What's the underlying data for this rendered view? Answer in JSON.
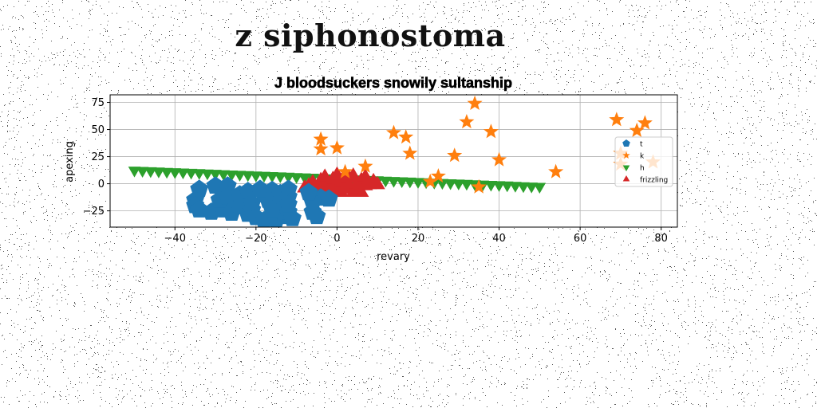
{
  "page": {
    "title": "z siphonostoma"
  },
  "colors": {
    "t": "#1f77b4",
    "k": "#ff7f0e",
    "h": "#2ca02c",
    "frizzling": "#d62728"
  },
  "chart_data": {
    "type": "scatter",
    "title": "J bloodsuckers snowily sultanship",
    "xlabel": "revary",
    "ylabel": "apexing",
    "xlim": [
      -56,
      84
    ],
    "ylim": [
      -40,
      82
    ],
    "xticks": [
      -40,
      -20,
      0,
      20,
      40,
      60,
      80
    ],
    "yticks": [
      -25,
      0,
      25,
      50,
      75
    ],
    "grid": true,
    "legend_position": "center-right",
    "series": [
      {
        "name": "t",
        "marker": "pentagon",
        "points": [
          [
            -34,
            -5
          ],
          [
            -35,
            -15
          ],
          [
            -35,
            -20
          ],
          [
            -34,
            -24
          ],
          [
            -31,
            -26
          ],
          [
            -28,
            -24
          ],
          [
            -29,
            -15
          ],
          [
            -30,
            -2
          ],
          [
            -27,
            -2
          ],
          [
            -27,
            -12
          ],
          [
            -25,
            -17
          ],
          [
            -26,
            -27
          ],
          [
            -24,
            -21
          ],
          [
            -22,
            -28
          ],
          [
            -24,
            -10
          ],
          [
            -22,
            -7
          ],
          [
            -21,
            -18
          ],
          [
            -21,
            -24
          ],
          [
            -20,
            -31
          ],
          [
            -18,
            -34
          ],
          [
            -15,
            -33
          ],
          [
            -13,
            -30
          ],
          [
            -15,
            -21
          ],
          [
            -17,
            -15
          ],
          [
            -18,
            -10
          ],
          [
            -16,
            -6
          ],
          [
            -19,
            -5
          ],
          [
            -14,
            -9
          ],
          [
            -12,
            -5
          ],
          [
            -12,
            -12
          ],
          [
            -16,
            -24
          ],
          [
            -12,
            -26
          ],
          [
            -11,
            -32
          ],
          [
            -6,
            -26
          ],
          [
            -5,
            -30
          ],
          [
            -4,
            -13
          ],
          [
            -6,
            -17
          ],
          [
            -2,
            -14
          ],
          [
            -12,
            -19
          ],
          [
            -7,
            -8
          ]
        ]
      },
      {
        "name": "k",
        "marker": "star",
        "points": [
          [
            -4,
            41
          ],
          [
            -4,
            32
          ],
          [
            0,
            33
          ],
          [
            2,
            11
          ],
          [
            7,
            16
          ],
          [
            14,
            47
          ],
          [
            17,
            43
          ],
          [
            18,
            28
          ],
          [
            23,
            2
          ],
          [
            25,
            7
          ],
          [
            29,
            26
          ],
          [
            32,
            57
          ],
          [
            34,
            74
          ],
          [
            35,
            -3
          ],
          [
            38,
            48
          ],
          [
            40,
            22
          ],
          [
            54,
            11
          ],
          [
            69,
            59
          ],
          [
            70,
            28
          ],
          [
            70,
            18
          ],
          [
            74,
            49
          ],
          [
            76,
            56
          ],
          [
            78,
            20
          ]
        ]
      },
      {
        "name": "h",
        "marker": "triangle-down",
        "points": [
          [
            -50,
            12.5
          ],
          [
            -48,
            12.2
          ],
          [
            -46,
            11.9
          ],
          [
            -44,
            11.6
          ],
          [
            -42,
            11.3
          ],
          [
            -40,
            11.0
          ],
          [
            -38,
            10.7
          ],
          [
            -36,
            10.4
          ],
          [
            -34,
            10.1
          ],
          [
            -32,
            9.8
          ],
          [
            -30,
            9.5
          ],
          [
            -28,
            9.2
          ],
          [
            -26,
            8.9
          ],
          [
            -24,
            8.6
          ],
          [
            -22,
            8.3
          ],
          [
            -20,
            8.0
          ],
          [
            -18,
            7.7
          ],
          [
            -16,
            7.4
          ],
          [
            -14,
            7.1
          ],
          [
            -12,
            6.8
          ],
          [
            -10,
            6.5
          ],
          [
            -8,
            6.2
          ],
          [
            -6,
            5.9
          ],
          [
            -4,
            5.6
          ],
          [
            -2,
            5.3
          ],
          [
            0,
            5.0
          ],
          [
            2,
            4.7
          ],
          [
            4,
            4.4
          ],
          [
            6,
            4.1
          ],
          [
            8,
            3.8
          ],
          [
            10,
            3.5
          ],
          [
            12,
            3.2
          ],
          [
            14,
            2.9
          ],
          [
            16,
            2.6
          ],
          [
            18,
            2.3
          ],
          [
            20,
            2.0
          ],
          [
            22,
            1.7
          ],
          [
            24,
            1.4
          ],
          [
            26,
            1.1
          ],
          [
            28,
            0.8
          ],
          [
            30,
            0.5
          ],
          [
            32,
            0.2
          ],
          [
            34,
            -0.1
          ],
          [
            36,
            -0.4
          ],
          [
            38,
            -0.7
          ],
          [
            40,
            -1.0
          ],
          [
            42,
            -1.3
          ],
          [
            44,
            -1.6
          ],
          [
            46,
            -1.9
          ],
          [
            48,
            -2.2
          ],
          [
            50,
            -2.5
          ]
        ]
      },
      {
        "name": "frizzling",
        "marker": "triangle-up",
        "points": [
          [
            -7,
            -2
          ],
          [
            -6,
            1
          ],
          [
            -5,
            -6
          ],
          [
            -4,
            3
          ],
          [
            -4,
            -4
          ],
          [
            -3,
            6
          ],
          [
            -2,
            -1
          ],
          [
            -2,
            -9
          ],
          [
            -1,
            4
          ],
          [
            0,
            -3
          ],
          [
            0,
            8
          ],
          [
            1,
            -8
          ],
          [
            1,
            1
          ],
          [
            2,
            -5
          ],
          [
            3,
            5
          ],
          [
            3,
            -2
          ],
          [
            4,
            -8
          ],
          [
            4,
            7
          ],
          [
            5,
            0
          ],
          [
            5,
            -5
          ],
          [
            6,
            3
          ],
          [
            6,
            -8
          ],
          [
            7,
            6
          ],
          [
            7,
            -2
          ],
          [
            8,
            -1
          ],
          [
            9,
            2
          ],
          [
            10,
            -1
          ],
          [
            -8,
            -4
          ],
          [
            -1,
            -6
          ],
          [
            2,
            8
          ]
        ]
      }
    ]
  }
}
